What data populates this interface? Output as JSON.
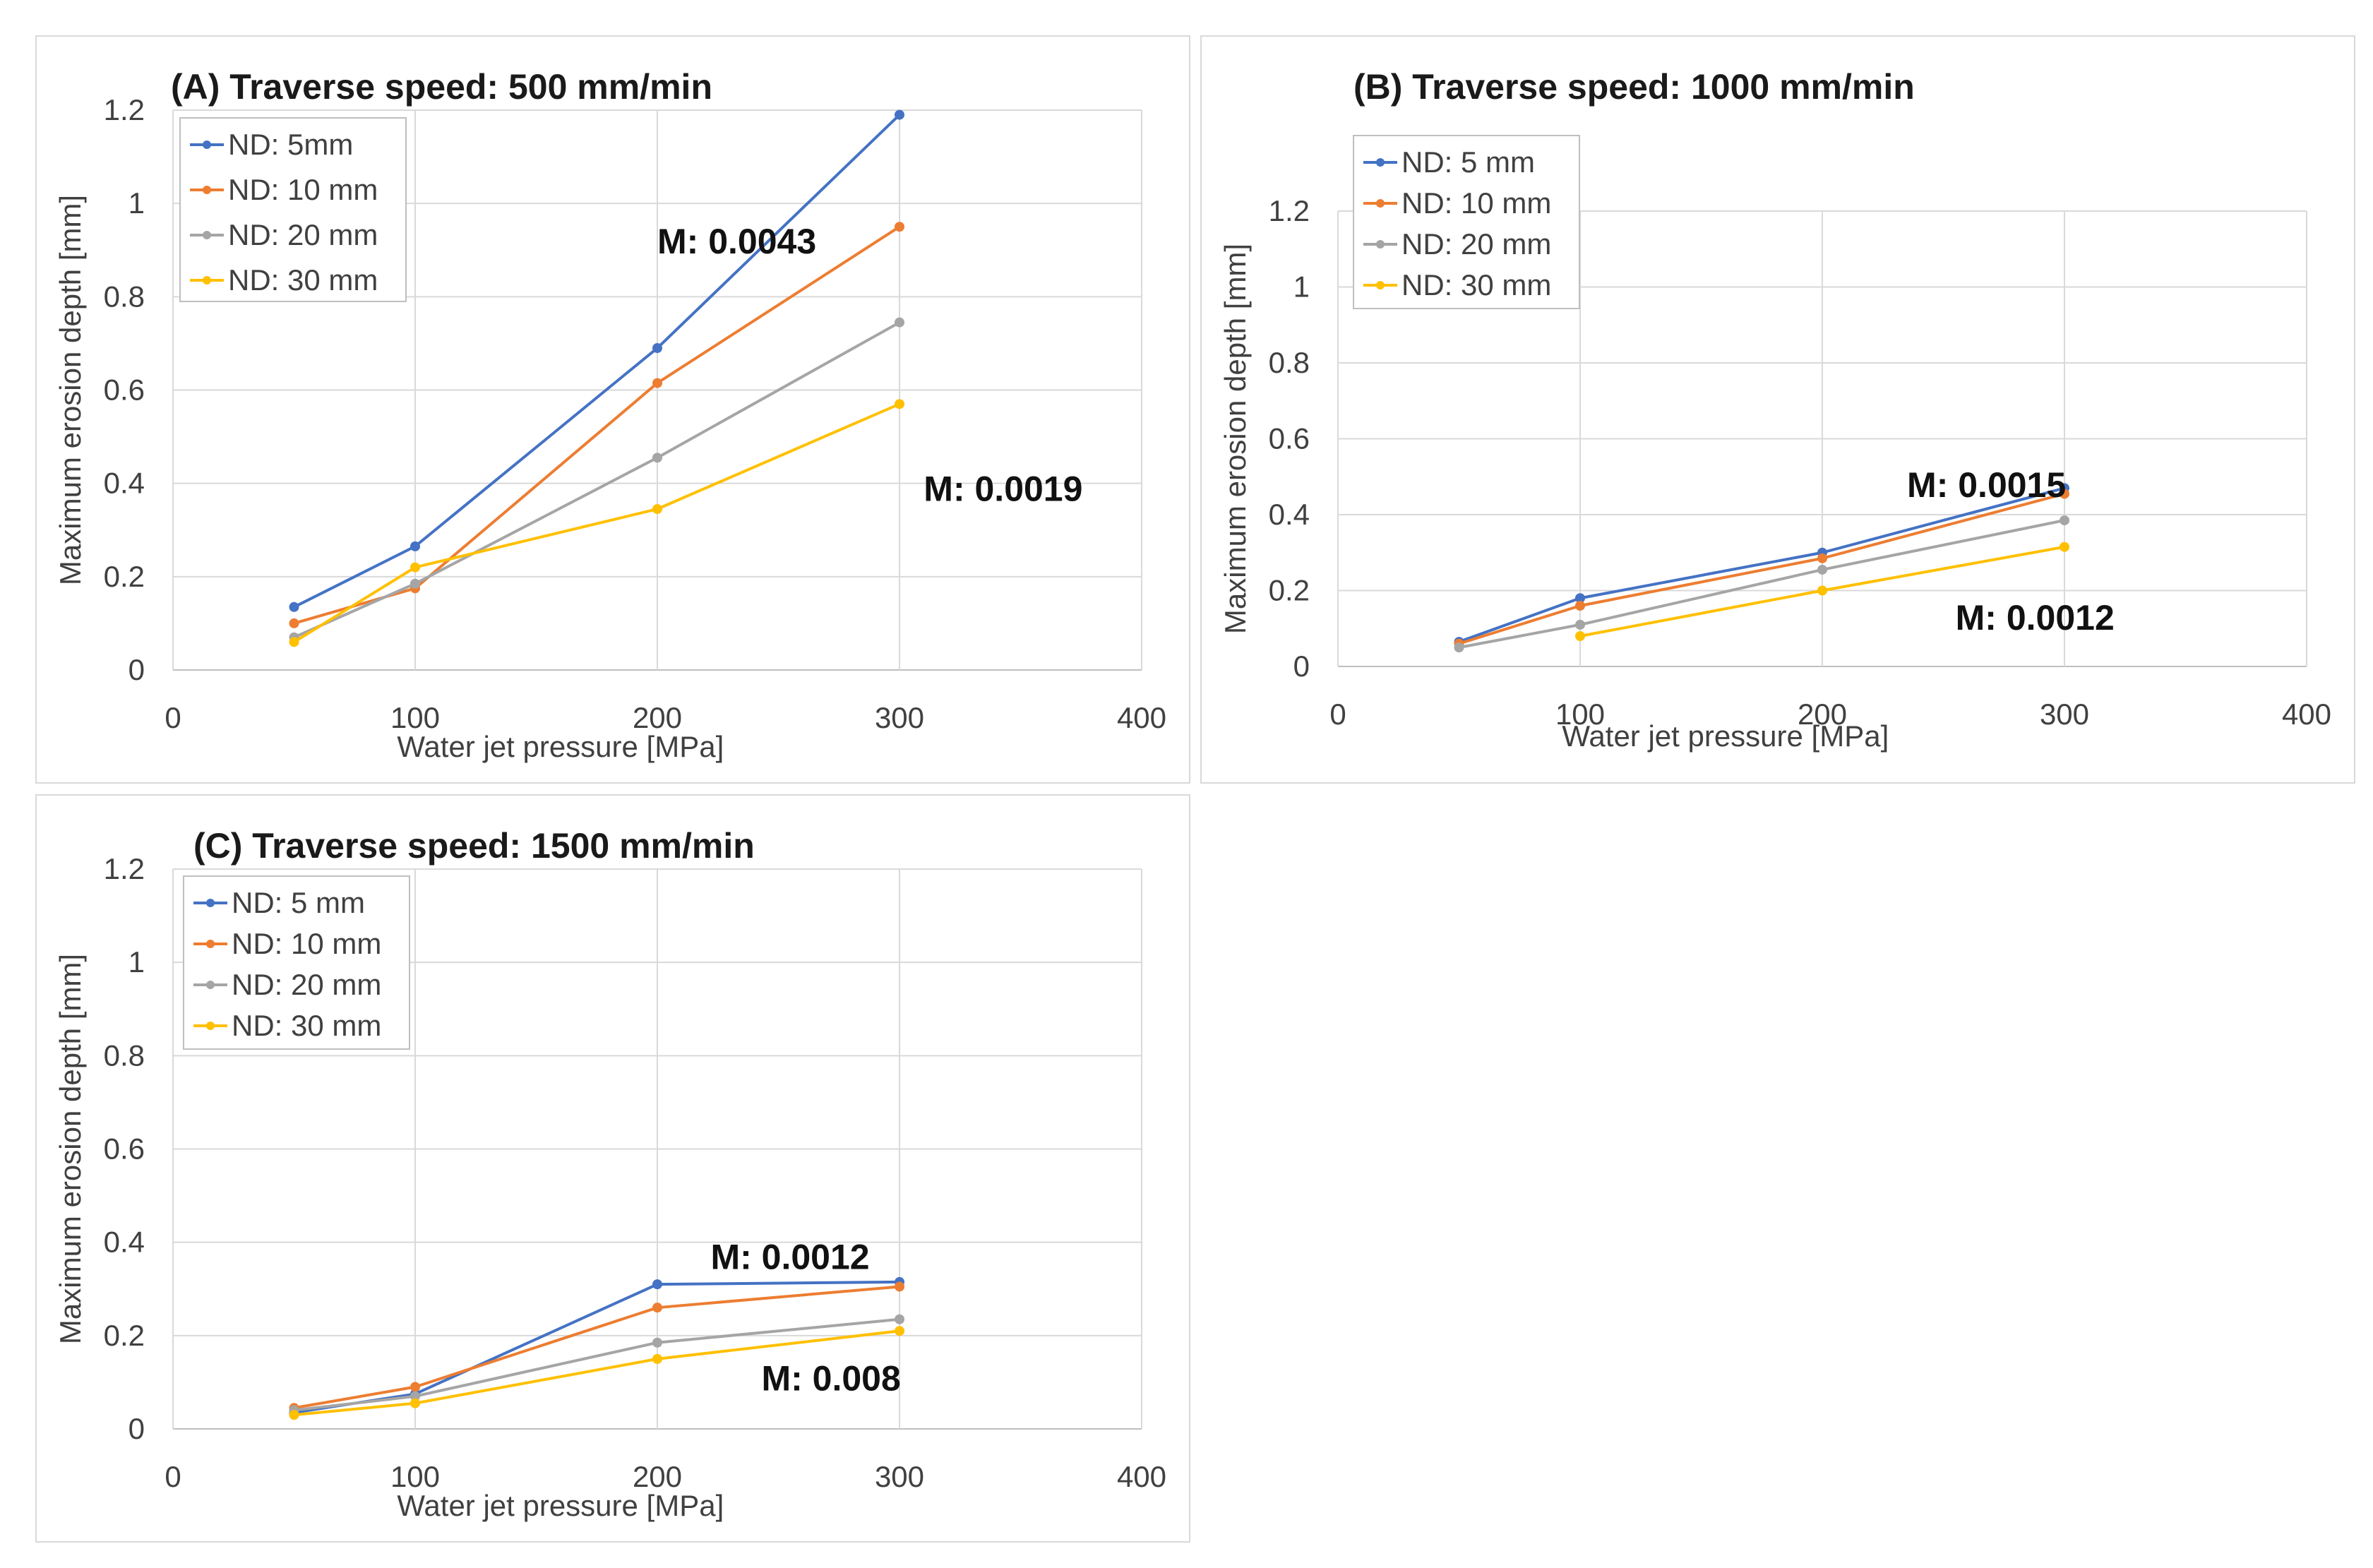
{
  "chart_data": [
    {
      "id": "A",
      "type": "line",
      "title": "(A) Traverse speed: 500 mm/min",
      "xlabel": "Water jet pressure [MPa]",
      "ylabel": "Maximum erosion depth [mm]",
      "xlim": [
        0,
        400
      ],
      "ylim": [
        0,
        1.2
      ],
      "xticks": [
        0,
        100,
        200,
        300,
        400
      ],
      "yticks": [
        0,
        0.2,
        0.4,
        0.6,
        0.8,
        1,
        1.2
      ],
      "x": [
        50,
        100,
        200,
        300
      ],
      "legend_position": "top-left",
      "series": [
        {
          "name": "ND: 5mm",
          "color": "#4472C4",
          "values": [
            0.135,
            0.265,
            0.69,
            1.19
          ]
        },
        {
          "name": "ND: 10 mm",
          "color": "#ED7D31",
          "values": [
            0.1,
            0.175,
            0.615,
            0.95
          ]
        },
        {
          "name": "ND: 20 mm",
          "color": "#A5A5A5",
          "values": [
            0.07,
            0.185,
            0.455,
            0.745
          ]
        },
        {
          "name": "ND: 30 mm",
          "color": "#FFC000",
          "values": [
            0.06,
            0.22,
            0.345,
            0.57
          ]
        }
      ],
      "annotations": [
        {
          "text": "M: 0.0043",
          "x": 200,
          "y": 0.92
        },
        {
          "text": "M: 0.0019",
          "x": 310,
          "y": 0.39
        }
      ]
    },
    {
      "id": "B",
      "type": "line",
      "title": "(B) Traverse speed: 1000 mm/min",
      "xlabel": "Water jet pressure [MPa]",
      "ylabel": "Maximum erosion depth [mm]",
      "xlim": [
        0,
        400
      ],
      "ylim": [
        0,
        1.2
      ],
      "xticks": [
        0,
        100,
        200,
        300,
        400
      ],
      "yticks": [
        0,
        0.2,
        0.4,
        0.6,
        0.8,
        1,
        1.2
      ],
      "x": [
        50,
        100,
        200,
        300
      ],
      "legend_position": "top-left",
      "series": [
        {
          "name": "ND: 5 mm",
          "color": "#4472C4",
          "values": [
            0.065,
            0.18,
            0.3,
            0.47
          ]
        },
        {
          "name": "ND: 10 mm",
          "color": "#ED7D31",
          "values": [
            0.06,
            0.16,
            0.285,
            0.455
          ]
        },
        {
          "name": "ND: 20 mm",
          "color": "#A5A5A5",
          "values": [
            0.05,
            0.11,
            0.255,
            0.385
          ]
        },
        {
          "name": "ND: 30 mm",
          "color": "#FFC000",
          "values": [
            null,
            0.08,
            0.2,
            0.315
          ]
        }
      ],
      "annotations": [
        {
          "text": "M: 0.0015",
          "x": 235,
          "y": 0.48
        },
        {
          "text": "M: 0.0012",
          "x": 255,
          "y": 0.13
        }
      ]
    },
    {
      "id": "C",
      "type": "line",
      "title": "(C) Traverse speed: 1500 mm/min",
      "xlabel": "Water jet pressure [MPa]",
      "ylabel": "Maximum erosion depth [mm]",
      "xlim": [
        0,
        400
      ],
      "ylim": [
        0,
        1.2
      ],
      "xticks": [
        0,
        100,
        200,
        300,
        400
      ],
      "yticks": [
        0,
        0.2,
        0.4,
        0.6,
        0.8,
        1,
        1.2
      ],
      "x": [
        50,
        100,
        200,
        300
      ],
      "legend_position": "top-left",
      "series": [
        {
          "name": "ND: 5 mm",
          "color": "#4472C4",
          "values": [
            0.035,
            0.075,
            0.31,
            0.315
          ]
        },
        {
          "name": "ND: 10 mm",
          "color": "#ED7D31",
          "values": [
            0.045,
            0.09,
            0.26,
            0.305
          ]
        },
        {
          "name": "ND: 20 mm",
          "color": "#A5A5A5",
          "values": [
            0.04,
            0.07,
            0.185,
            0.235
          ]
        },
        {
          "name": "ND: 30 mm",
          "color": "#FFC000",
          "values": [
            0.03,
            0.055,
            0.15,
            0.21
          ]
        }
      ],
      "annotations": [
        {
          "text": "M: 0.0012",
          "x": 222,
          "y": 0.37
        },
        {
          "text": "M: 0.008",
          "x": 243,
          "y": 0.11
        }
      ]
    }
  ]
}
